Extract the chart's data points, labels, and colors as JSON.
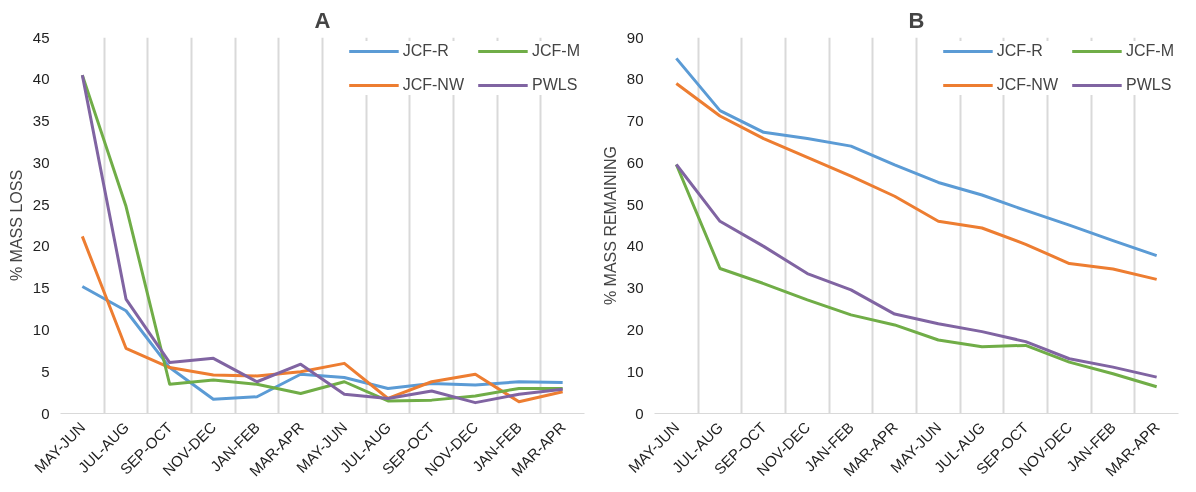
{
  "chart_data": [
    {
      "type": "line",
      "title": "A",
      "ylabel": "% MASS LOSS",
      "categories": [
        "MAY-JUN",
        "JUL-AUG",
        "SEP-OCT",
        "NOV-DEC",
        "JAN-FEB",
        "MAR-APR",
        "MAY-JUN",
        "JUL-AUG",
        "SEP-OCT",
        "NOV-DEC",
        "JAN-FEB",
        "MAR-APR"
      ],
      "ylim": [
        0,
        45
      ],
      "yticks": [
        0,
        5,
        10,
        15,
        20,
        25,
        30,
        35,
        40,
        45
      ],
      "grid": "x",
      "legend": "top right",
      "series": [
        {
          "name": "JCF-R",
          "color": "#5b9bd5",
          "values": [
            15.2,
            12.3,
            5.5,
            1.7,
            2.0,
            4.7,
            4.3,
            3.0,
            3.6,
            3.4,
            3.8,
            3.7
          ]
        },
        {
          "name": "JCF-NW",
          "color": "#ed7d31",
          "values": [
            21.2,
            7.8,
            5.5,
            4.6,
            4.5,
            5.0,
            6.0,
            1.8,
            3.8,
            4.7,
            1.4,
            2.6
          ]
        },
        {
          "name": "JCF-M",
          "color": "#70ad47",
          "values": [
            40.5,
            24.8,
            3.5,
            4.0,
            3.5,
            2.4,
            3.8,
            1.5,
            1.6,
            2.1,
            3.0,
            3.0
          ]
        },
        {
          "name": "PWLS",
          "color": "#8064a2",
          "values": [
            40.5,
            13.7,
            6.1,
            6.6,
            3.8,
            5.9,
            2.3,
            1.8,
            2.7,
            1.3,
            2.3,
            2.9
          ]
        }
      ]
    },
    {
      "type": "line",
      "title": "B",
      "ylabel": "% MASS REMAINING",
      "categories": [
        "MAY-JUN",
        "JUL-AUG",
        "SEP-OCT",
        "NOV-DEC",
        "JAN-FEB",
        "MAR-APR",
        "MAY-JUN",
        "JUL-AUG",
        "SEP-OCT",
        "NOV-DEC",
        "JAN-FEB",
        "MAR-APR"
      ],
      "ylim": [
        0,
        90
      ],
      "yticks": [
        0,
        10,
        20,
        30,
        40,
        50,
        60,
        70,
        80,
        90
      ],
      "grid": "x",
      "legend": "top right",
      "series": [
        {
          "name": "JCF-R",
          "color": "#5b9bd5",
          "values": [
            85,
            72.5,
            67.3,
            65.8,
            64,
            59.5,
            55.3,
            52.3,
            48.6,
            45.1,
            41.4,
            37.8
          ]
        },
        {
          "name": "JCF-NW",
          "color": "#ed7d31",
          "values": [
            79,
            71.2,
            65.8,
            61.3,
            56.8,
            52,
            46,
            44.4,
            40.5,
            35.9,
            34.6,
            32.1
          ]
        },
        {
          "name": "JCF-M",
          "color": "#70ad47",
          "values": [
            59.6,
            34.7,
            31.1,
            27.2,
            23.6,
            21.2,
            17.6,
            16.0,
            16.3,
            12.3,
            9.5,
            6.4
          ]
        },
        {
          "name": "PWLS",
          "color": "#8064a2",
          "values": [
            59.6,
            46,
            40,
            33.5,
            29.6,
            23.8,
            21.5,
            19.6,
            17.2,
            13.1,
            11.1,
            8.7
          ]
        }
      ]
    }
  ]
}
